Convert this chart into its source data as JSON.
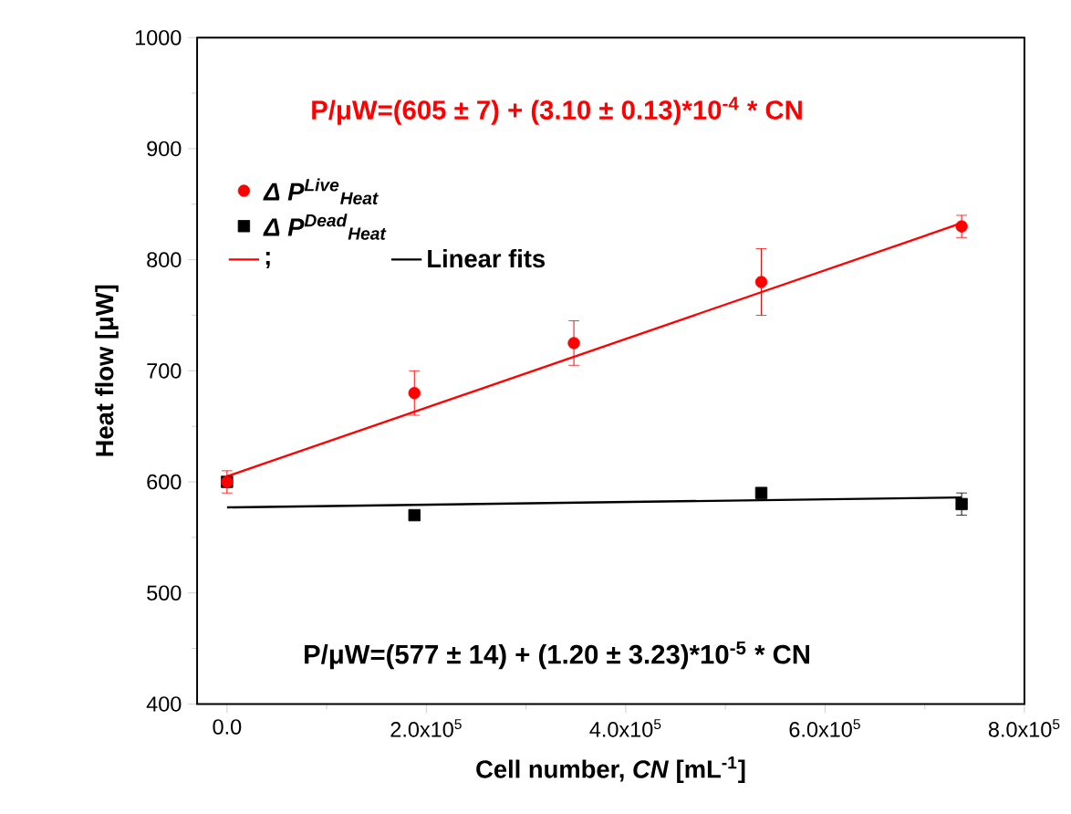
{
  "chart_data": {
    "type": "scatter",
    "xlabel": "Cell number, *CN* [mL$^{-1}$]",
    "ylabel": "Heat  flow  [μW]",
    "xlim": [
      -30000,
      800000
    ],
    "ylim": [
      400,
      1000
    ],
    "xticks": [
      {
        "value": 0,
        "label": "0.0"
      },
      {
        "value": 200000,
        "label": "2.0x10$^{5}$"
      },
      {
        "value": 400000,
        "label": "4.0x10$^{5}$"
      },
      {
        "value": 600000,
        "label": "6.0x10$^{5}$"
      },
      {
        "value": 800000,
        "label": "8.0x10$^{5}$"
      }
    ],
    "yticks": [
      400,
      500,
      600,
      700,
      800,
      900,
      1000
    ],
    "legend": "top left",
    "series": [
      {
        "name": "Δ P$^{Live}$$_{Heat}$",
        "type": "scatter",
        "marker": "circle",
        "color": "#ff0000",
        "x": [
          0,
          188000,
          348000,
          536000,
          737000
        ],
        "values": [
          600,
          680,
          725,
          780,
          830
        ],
        "errors": [
          10,
          20,
          20,
          30,
          10
        ]
      },
      {
        "name": "Δ P$^{Dead}$$_{Heat}$",
        "type": "scatter",
        "marker": "square",
        "color": "#000000",
        "x": [
          0,
          188000,
          536000,
          737000
        ],
        "values": [
          600,
          570,
          590,
          580
        ],
        "errors": [
          null,
          null,
          null,
          10
        ]
      },
      {
        "name": ";",
        "type": "line",
        "color": "#ff0000",
        "x": [
          0,
          737000
        ],
        "values": [
          605,
          833
        ]
      },
      {
        "name": "Linear fits",
        "type": "line",
        "color": "#000000",
        "x": [
          0,
          737000
        ],
        "values": [
          577,
          586
        ]
      }
    ],
    "annotations": [
      "P/μW=(605 ± 7) + (3.10 ± 0.13)*10$^{-4}$ * CN",
      "P/μW=(577 ± 14) + (1.20 ± 3.23)*10$^{-5}$ * CN"
    ]
  }
}
